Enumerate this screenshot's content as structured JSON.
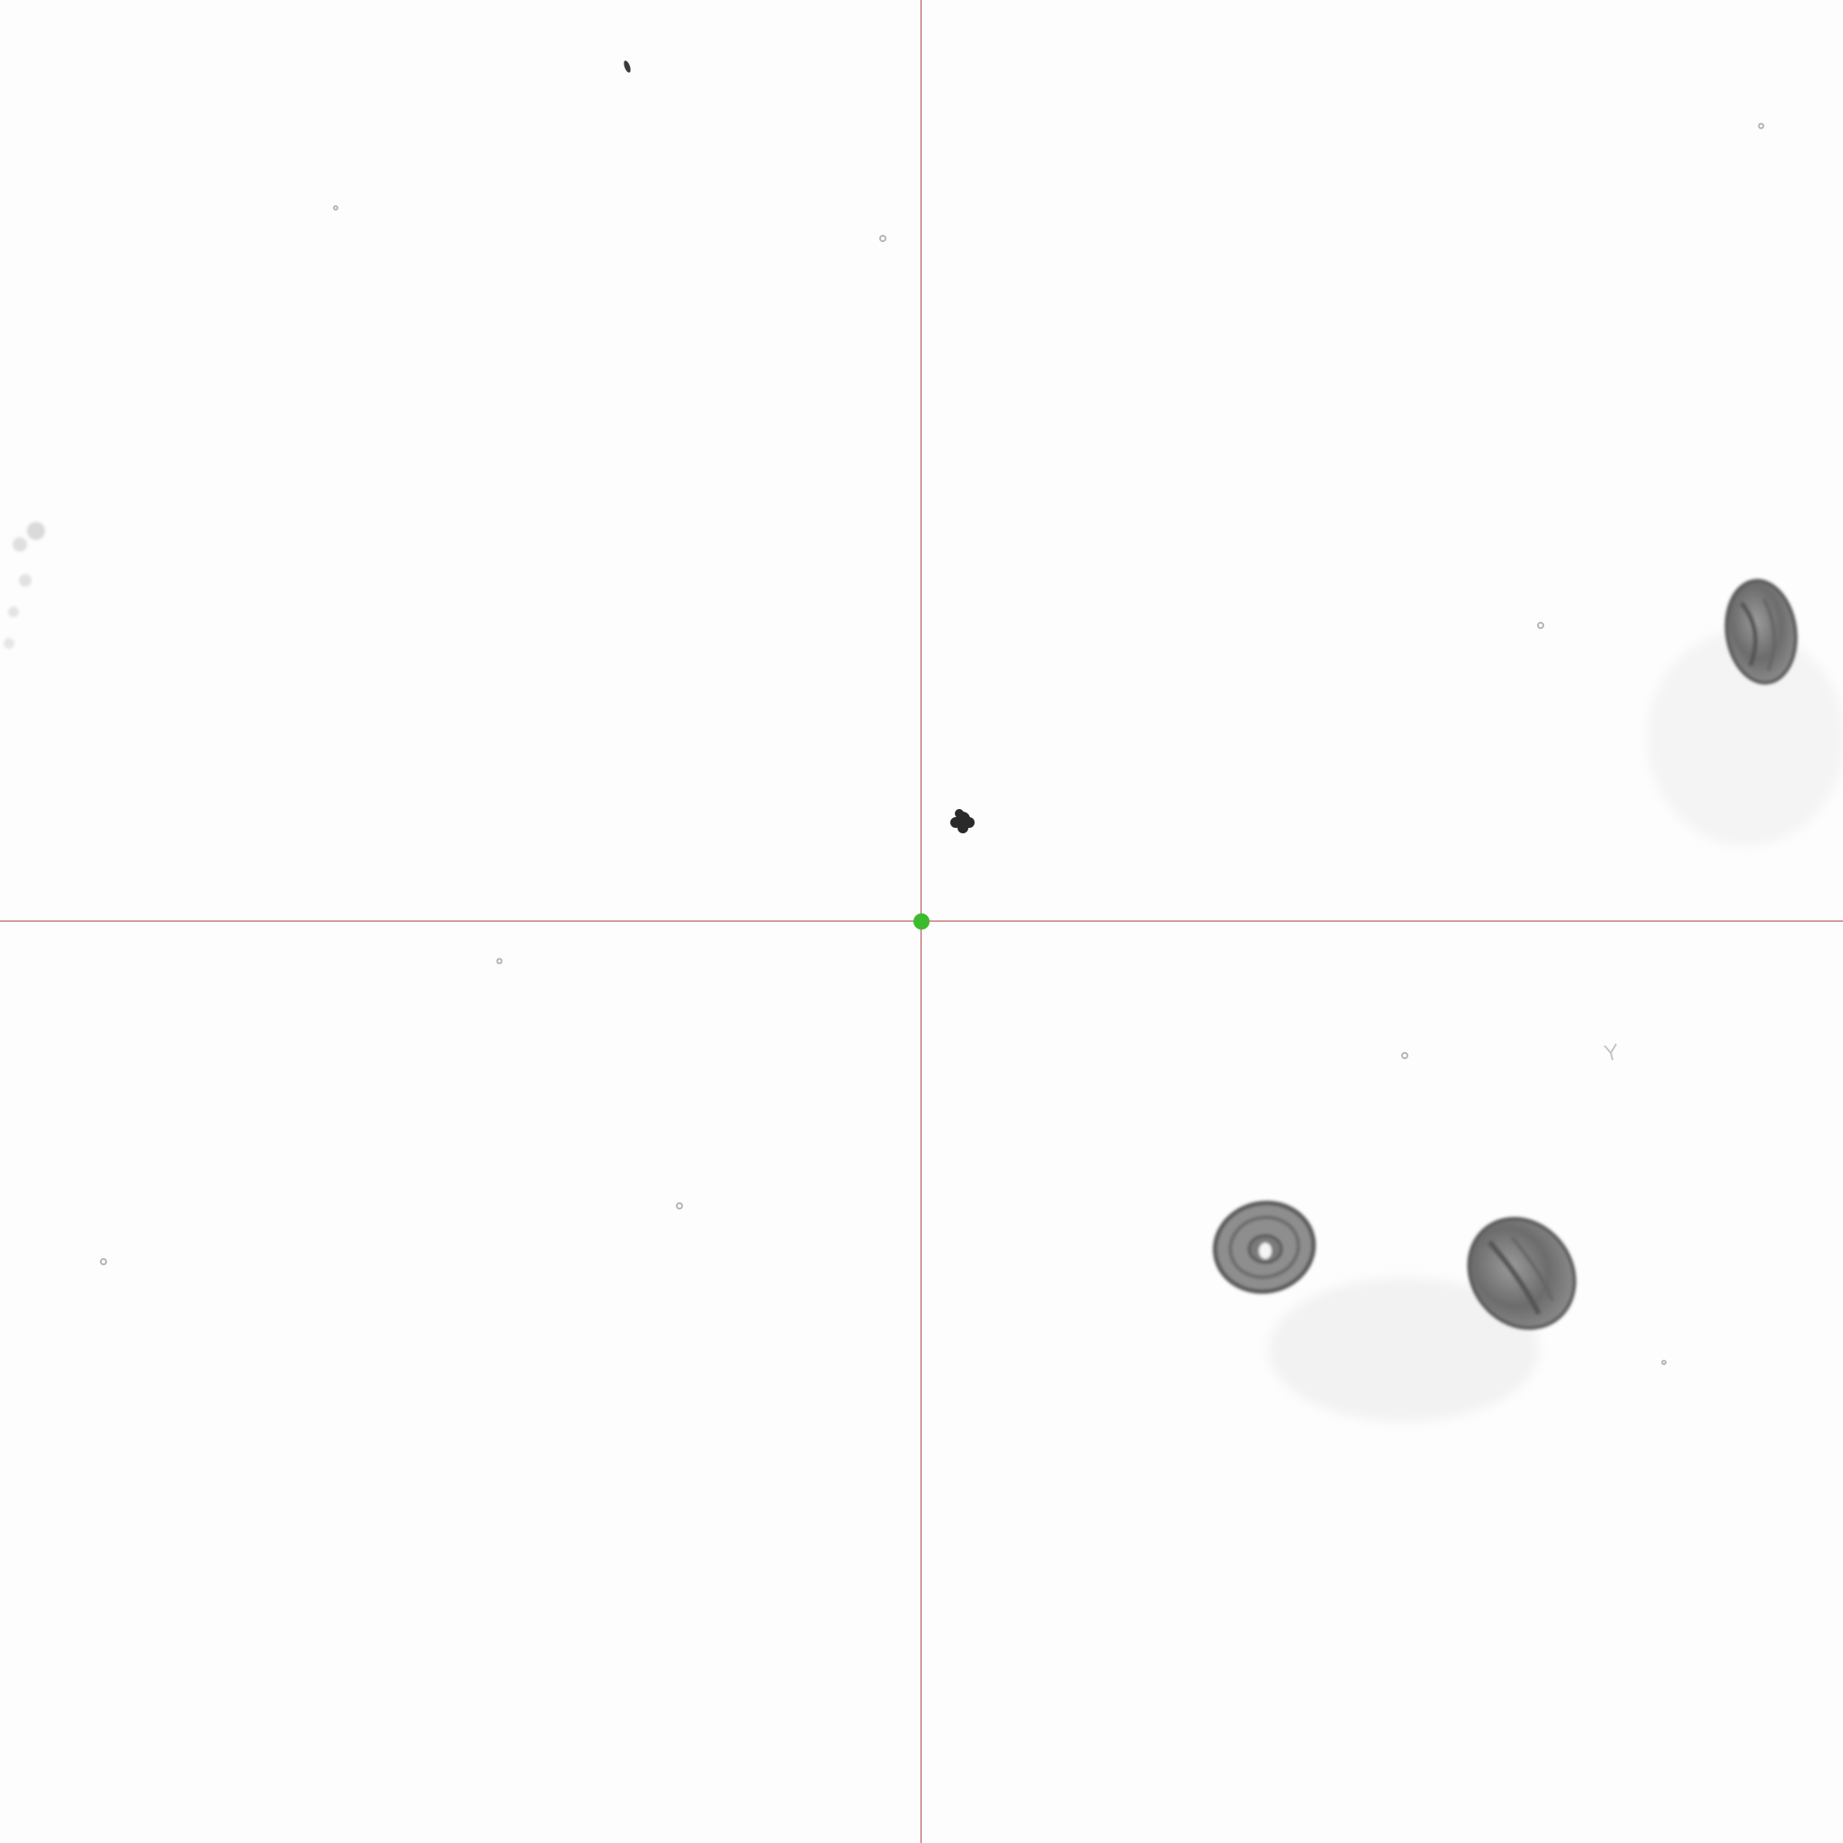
{
  "viewer": {
    "background_color": "#fdfdfd",
    "crosshair_color": "#b04a4a",
    "center_marker_color": "#3dbb2f",
    "specimen_color": "#4a4a4a"
  },
  "specimens": [
    {
      "name": "pollen-grain-right",
      "kind": "ellipse"
    },
    {
      "name": "pollen-grain-lower-left",
      "kind": "ring"
    },
    {
      "name": "pollen-grain-lower-right",
      "kind": "ellipse"
    },
    {
      "name": "dark-particle-center",
      "kind": "blob"
    },
    {
      "name": "dark-particle-top",
      "kind": "speck"
    },
    {
      "name": "faint-cluster-left",
      "kind": "haze"
    }
  ]
}
